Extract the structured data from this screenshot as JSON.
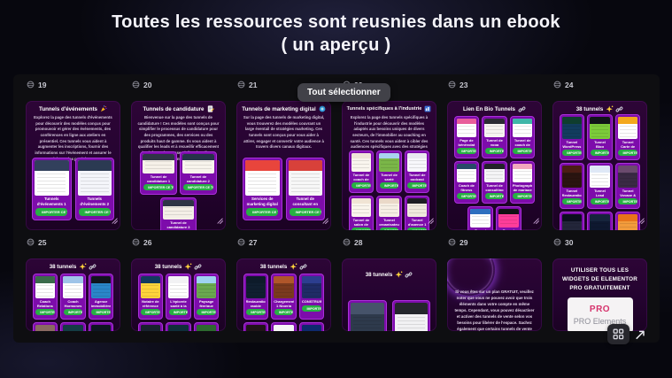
{
  "page_title": {
    "line1": "Toutes les ressources sont reusnies dans un ebook",
    "line2": "( un aperçu )"
  },
  "tooltip": {
    "label": "Tout sélectionner"
  },
  "import_button": "IMPORTER CE TUNNEL",
  "colors": {
    "accent_green": "#27b043",
    "card_purple": "#7d0cab",
    "tile_purple": "#240330",
    "panel_bg": "#0e0e11",
    "tooltip_bg": "#414148",
    "pro_badge": "#d6336c"
  },
  "controls": {
    "grid_icon": "grid-view",
    "expand_icon": "expand-arrow"
  },
  "tiles": [
    {
      "num": "19",
      "heading": "Tunnels d'événements",
      "icons": [
        "party"
      ],
      "paragraph": "Explorez la page des tunnels d'événements pour découvrir des modèles conçus pour promouvoir et gérer des événements, des conférences en ligne aux ateliers en présentiel. Ces tunnels vous aident à augmenter les inscriptions, fournir des informations sur l'événement et assurer le suivi avec les participants.",
      "cards": [
        {
          "label": "Tunnels d'événements 1",
          "thumb": [
            "#32405c",
            "#ffffff"
          ]
        },
        {
          "label": "Tunnels d'événements 2",
          "thumb": [
            "#2b3a52",
            "#f4f5fa"
          ]
        }
      ]
    },
    {
      "num": "20",
      "heading": "Tunnels de candidature",
      "icons": [
        "memo"
      ],
      "paragraph": "Bienvenue sur la page des tunnels de candidature ! Ces modèles sont conçus pour simplifier le processus de candidature pour des programmes, des services ou des produits haut de gamme. Ils vous aident à qualifier les leads et à recueillir efficacement les informations essentielles des clients potentiels.",
      "cards": [
        {
          "label": "Tunnel de candidature 1",
          "thumb": [
            "#2e3445",
            "#f6f1e9"
          ]
        },
        {
          "label": "Tunnel de candidature 2",
          "thumb": [
            "#253349",
            "#f8f4ed"
          ]
        },
        {
          "label": "Tunnel de candidature 3",
          "thumb": [
            "#2e3445",
            "#f4efe7"
          ]
        }
      ]
    },
    {
      "num": "21",
      "heading": "Tunnels de marketing digital",
      "icons": [
        "disc"
      ],
      "paragraph": "Sur la page des tunnels de marketing digital, vous trouverez des modèles couvrant un large éventail de stratégies marketing. Ces tunnels sont conçus pour vous aider à attirer, engager et convertir votre audience à travers divers canaux digitaux.",
      "cards": [
        {
          "label": "Services de marketing digital",
          "thumb": [
            "#e8453c",
            "#ffffff"
          ]
        },
        {
          "label": "Tunnel de consultant en marketing",
          "thumb": [
            "#d8413a",
            "#f7f7f7"
          ]
        }
      ]
    },
    {
      "num": "22",
      "heading": "Tunnels spécifiques à l'industrie",
      "icons": [
        "factory"
      ],
      "paragraph": "Explorez la page des tunnels spécifiques à l'industrie pour découvrir des modèles adaptés aux besoins uniques de divers secteurs, de l'immobilier au coaching en santé. Ces tunnels vous aident à cibler des audiences spécifiques avec des stratégies sur mesure.",
      "cards": [
        {
          "label": "Tunnel de coach de vie",
          "thumb": [
            "#efe6d8",
            "#f9f5ee"
          ]
        },
        {
          "label": "Tunnel de santé",
          "thumb": [
            "#a9d3ef",
            "#7ab648"
          ]
        },
        {
          "label": "Tunnel de podcast",
          "thumb": [
            "#e8e8f0",
            "#f7f7fb"
          ]
        },
        {
          "label": "Tunnel de salon de coiffure",
          "thumb": [
            "#f0e4d4",
            "#faf5ec"
          ]
        },
        {
          "label": "Tunnel organisateur de soirée",
          "thumb": [
            "#ead9c8",
            "#f6efe4"
          ]
        },
        {
          "label": "Tunnel d'agence 1",
          "thumb": [
            "#1c1c22",
            "#efe9dd"
          ]
        }
      ]
    },
    {
      "num": "23",
      "heading": "Lien En Bio Tunnels",
      "icons": [
        "link"
      ],
      "cards": [
        {
          "label": "Page de bénévolat",
          "thumb": [
            "#e85d9a",
            "#ffffff"
          ]
        },
        {
          "label": "Tunnel de yoga",
          "thumb": [
            "#2b2b33",
            "#f6f3f0"
          ]
        },
        {
          "label": "Tunnel de coach de yoga",
          "thumb": [
            "#3fb6a8",
            "#ffffff"
          ]
        },
        {
          "label": "Coach de fitness",
          "thumb": [
            "#274a68",
            "#ffffff"
          ]
        },
        {
          "label": "Tunnel de consulting",
          "thumb": [
            "#222228",
            "#f4f4f6"
          ]
        },
        {
          "label": "Photographe de mariage",
          "thumb": [
            "#f2a7bd",
            "#ffffff"
          ]
        },
        {
          "label": "Tunnel immobilier",
          "thumb": [
            "#2e6fbf",
            "#ffffff"
          ]
        },
        {
          "label": "Tunnel spirituel 1",
          "thumb": [
            "#111114",
            "#ff3d9a"
          ]
        }
      ]
    },
    {
      "num": "24",
      "heading": "38 tunnels",
      "icons": [
        "sparkles",
        "link"
      ],
      "cards": [
        {
          "label": "Tunnel WordPress",
          "thumb": [
            "#0f3d2e",
            "#123c5e"
          ]
        },
        {
          "label": "Tunnel Blog premium",
          "thumb": [
            "#101418",
            "#7ccb3a"
          ]
        },
        {
          "label": "Tunnel Carte de visite",
          "thumb": [
            "#f3a81c",
            "#ffffff"
          ]
        },
        {
          "label": "Tunnel Restauration",
          "thumb": [
            "#4a1d14",
            "#2a1410"
          ]
        },
        {
          "label": "Tunnel Lead Magnet",
          "thumb": [
            "#dfe8f6",
            "#ffffff"
          ]
        },
        {
          "label": "Tunnel Voyage & Guide",
          "thumb": [
            "#6b4a6e",
            "#3a2a44"
          ]
        },
        {
          "label": "Tunnel Plugin Vidéo",
          "thumb": [
            "#0b0f1e",
            "#23263a"
          ]
        },
        {
          "label": "Tunnel Événementiel",
          "thumb": [
            "#16243c",
            "#0e1830"
          ]
        },
        {
          "label": "Tunnel Coach sportif",
          "thumb": [
            "#e8741a",
            "#f29b3c"
          ]
        }
      ]
    },
    {
      "num": "25",
      "heading": "38 tunnels",
      "icons": [
        "sparkles",
        "link"
      ],
      "cards": [
        {
          "label": "Coach Relations",
          "thumb": [
            "#3a6b4a",
            "#ffffff"
          ]
        },
        {
          "label": "Coach Hormones",
          "thumb": [
            "#9fc4e8",
            "#ffffff"
          ]
        },
        {
          "label": "Agence immobilière",
          "thumb": [
            "#10141c",
            "#2a86c8"
          ]
        },
        {
          "label": "",
          "thumb": [
            "#8a6a62",
            "#5a463e"
          ]
        },
        {
          "label": "",
          "thumb": [
            "#143c44",
            "#0c2a30"
          ]
        },
        {
          "label": "",
          "thumb": [
            "#0e1622",
            "#1a2636"
          ]
        }
      ]
    },
    {
      "num": "26",
      "heading": "38 tunnels",
      "icons": [
        "sparkles",
        "link"
      ],
      "cards": [
        {
          "label": "Notaire de référence",
          "thumb": [
            "#123a5e",
            "#ffd43b"
          ]
        },
        {
          "label": "L'épicerie santé à la maison",
          "thumb": [
            "#f2f2f4",
            "#ffffff"
          ]
        },
        {
          "label": "Paysage féerique",
          "thumb": [
            "#9ed3f0",
            "#6aa84f"
          ]
        },
        {
          "label": "",
          "thumb": [
            "#18222e",
            "#101820"
          ]
        },
        {
          "label": "",
          "thumb": [
            "#0f2f3a",
            "#0a2028"
          ]
        },
        {
          "label": "",
          "thumb": [
            "#2d6a2f",
            "#1e4a20"
          ]
        }
      ]
    },
    {
      "num": "27",
      "heading": "38 tunnels",
      "icons": [
        "sparkles",
        "link"
      ],
      "cards": [
        {
          "label": "Restauration rapide",
          "thumb": [
            "#0d1b2a",
            "#101f30"
          ]
        },
        {
          "label": "Chargement 1 Nigeria nature",
          "thumb": [
            "#b0562a",
            "#7a3a1e"
          ]
        },
        {
          "label": "CONSTRUIRE",
          "thumb": [
            "#2c3e8f",
            "#1f2c66"
          ]
        },
        {
          "label": "",
          "thumb": [
            "#201418",
            "#160e10"
          ]
        },
        {
          "label": "",
          "thumb": [
            "#f6f6f6",
            "#ffffff"
          ]
        },
        {
          "label": "",
          "thumb": [
            "#0e2a6e",
            "#0a1e50"
          ]
        }
      ]
    },
    {
      "num": "28",
      "heading": "38 tunnels",
      "icons": [
        "sparkles",
        "link"
      ],
      "cards": [
        {
          "label": "",
          "thumb": [
            "#46536a",
            "#2e3a4c"
          ]
        },
        {
          "label": "",
          "thumb": [
            "#24262c",
            "#f1f1f3"
          ]
        }
      ]
    },
    {
      "num": "29",
      "note": "Si vous êtes sur un plan GRATUIT, veuillez noter que vous ne pouvez avoir que trois éléments dans votre compte en même temps. Cependant, vous pouvez désactiver et activer des tunnels de vente selon vos besoins pour libérer de l'espace. Sachez également que certains tunnels de vente pourraient ne pas s'importer dans votre compte si vous êtes sur un plan GRATUIT et que vous avez déjà atteint vos limites concernant les offres supplémentaires, les upsells, les"
    },
    {
      "num": "30",
      "promo_title": "UTILISER TOUS LES WIDGETS DE ELEMENTOR PRO GRATUITEMENT",
      "promo_badge": "PRO",
      "promo_name": "PRO Elements"
    }
  ]
}
